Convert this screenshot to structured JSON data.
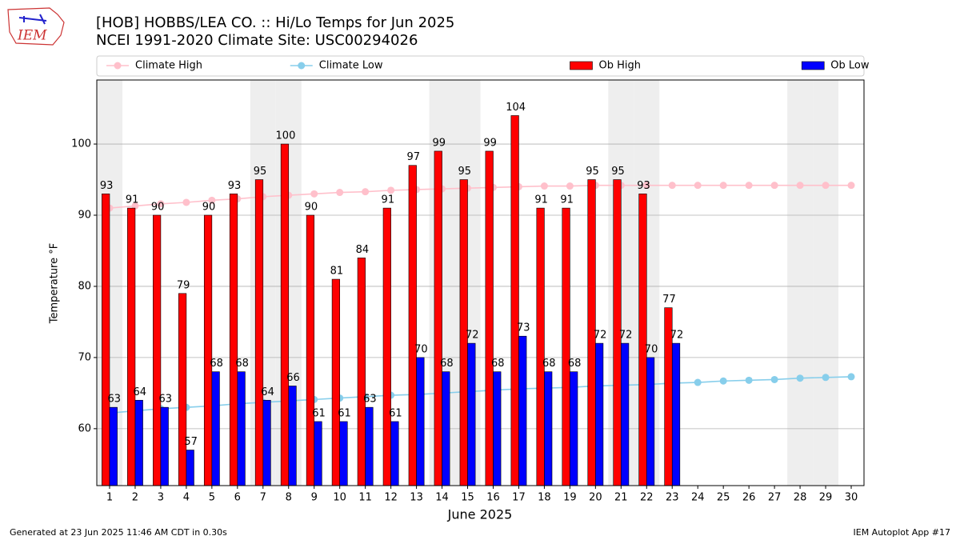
{
  "chart_data": {
    "type": "bar",
    "title": "[HOB] HOBBS/LEA CO. :: Hi/Lo Temps for Jun 2025",
    "subtitle": "NCEI 1991-2020 Climate Site: USC00294026",
    "ylabel": "Temperature °F",
    "xlabel": "June 2025",
    "logo_text": "IEM",
    "footer_left": "Generated at 23 Jun 2025 11:46 AM CDT in 0.30s",
    "footer_right": "IEM Autoplot App #17",
    "x": [
      1,
      2,
      3,
      4,
      5,
      6,
      7,
      8,
      9,
      10,
      11,
      12,
      13,
      14,
      15,
      16,
      17,
      18,
      19,
      20,
      21,
      22,
      23,
      24,
      25,
      26,
      27,
      28,
      29,
      30
    ],
    "xlim": [
      0.5,
      30.5
    ],
    "xticks": [
      1,
      2,
      3,
      4,
      5,
      6,
      7,
      8,
      9,
      10,
      11,
      12,
      13,
      14,
      15,
      16,
      17,
      18,
      19,
      20,
      21,
      22,
      23,
      24,
      25,
      26,
      27,
      28,
      29,
      30
    ],
    "ylim": [
      52,
      109
    ],
    "yticks": [
      60,
      70,
      80,
      90,
      100
    ],
    "grid": true,
    "legend": "top",
    "shaded_x": [
      1,
      7,
      8,
      14,
      15,
      21,
      22,
      28,
      29
    ],
    "series": [
      {
        "name": "Climate High",
        "type": "line",
        "color": "#ffc0cb",
        "values": [
          91.0,
          91.3,
          91.6,
          91.8,
          92.1,
          92.3,
          92.6,
          92.8,
          93.0,
          93.2,
          93.3,
          93.5,
          93.6,
          93.7,
          93.8,
          93.9,
          94.0,
          94.1,
          94.1,
          94.2,
          94.2,
          94.2,
          94.2,
          94.2,
          94.2,
          94.2,
          94.2,
          94.2,
          94.2,
          94.2
        ]
      },
      {
        "name": "Climate Low",
        "type": "line",
        "color": "#87ceeb",
        "values": [
          62.2,
          62.5,
          62.8,
          63.0,
          63.2,
          63.5,
          63.7,
          63.9,
          64.1,
          64.3,
          64.5,
          64.7,
          64.8,
          65.0,
          65.2,
          65.4,
          65.6,
          65.7,
          65.8,
          66.0,
          66.1,
          66.2,
          66.4,
          66.5,
          66.7,
          66.8,
          66.9,
          67.1,
          67.2,
          67.3
        ]
      },
      {
        "name": "Ob High",
        "type": "bar",
        "color": "#ff0000",
        "values": [
          93,
          91,
          90,
          79,
          90,
          93,
          95,
          100,
          90,
          81,
          84,
          91,
          97,
          99,
          95,
          99,
          104,
          91,
          91,
          95,
          95,
          93,
          77,
          null,
          null,
          null,
          null,
          null,
          null,
          null
        ]
      },
      {
        "name": "Ob Low",
        "type": "bar",
        "color": "#0000ff",
        "values": [
          63,
          64,
          63,
          57,
          68,
          68,
          64,
          66,
          61,
          61,
          63,
          61,
          70,
          68,
          72,
          68,
          73,
          68,
          68,
          72,
          72,
          70,
          72,
          null,
          null,
          null,
          null,
          null,
          null,
          null
        ]
      }
    ]
  }
}
